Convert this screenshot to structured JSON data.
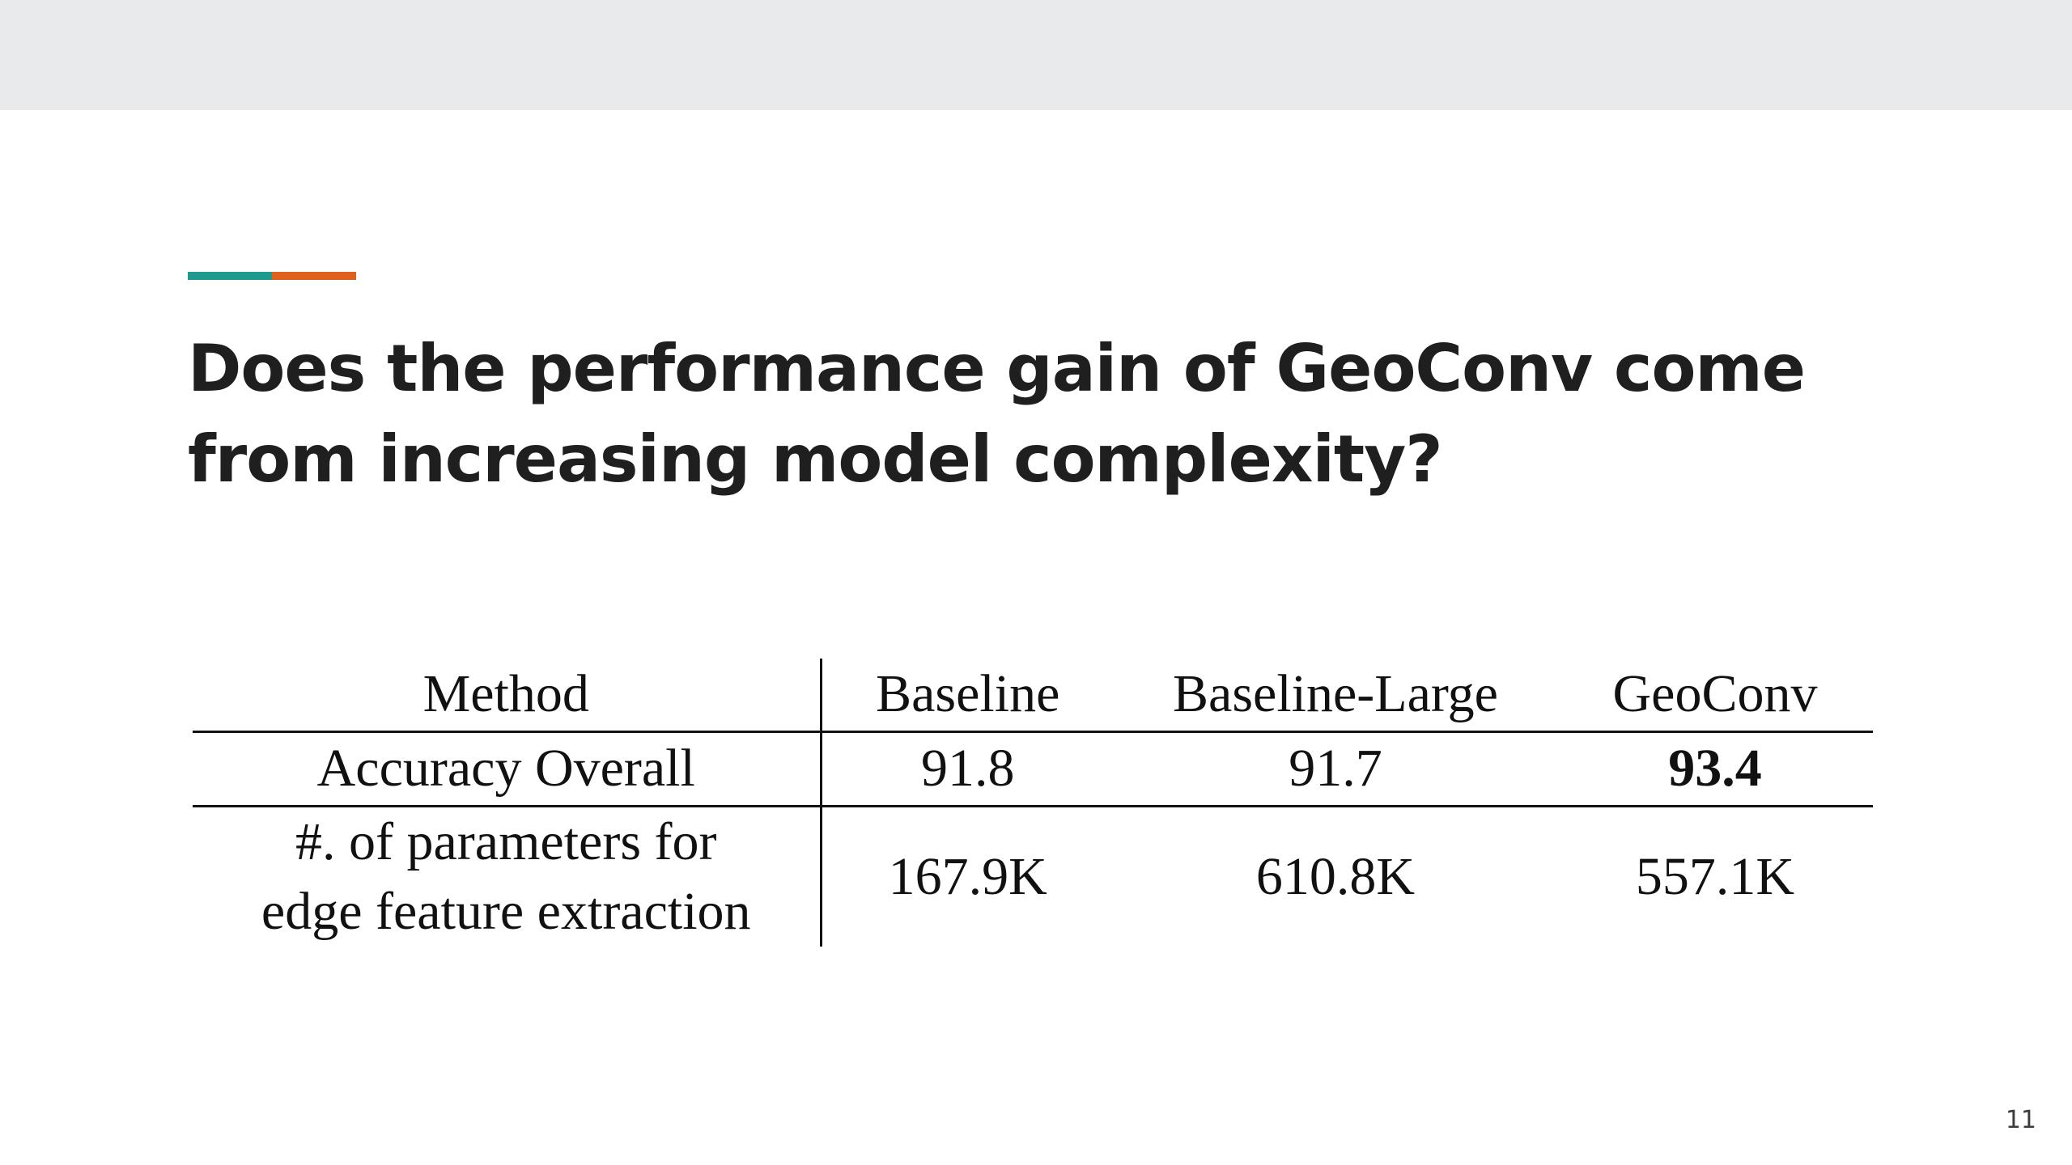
{
  "slide": {
    "accent_colors": {
      "teal": "#1f9a8e",
      "orange": "#e0601d",
      "top_bar": "#e9eaec"
    },
    "title_line1": "Does the performance gain of GeoConv come",
    "title_line2": "from increasing model complexity?",
    "page_number": "11"
  },
  "table": {
    "headers": [
      "Method",
      "Baseline",
      "Baseline-Large",
      "GeoConv"
    ],
    "rows": [
      {
        "label": "Accuracy Overall",
        "values": [
          "91.8",
          "91.7",
          "93.4"
        ]
      },
      {
        "label_line1": "#. of parameters for",
        "label_line2": "edge feature extraction",
        "values": [
          "167.9K",
          "610.8K",
          "557.1K"
        ]
      }
    ],
    "highlighted": "93.4"
  }
}
